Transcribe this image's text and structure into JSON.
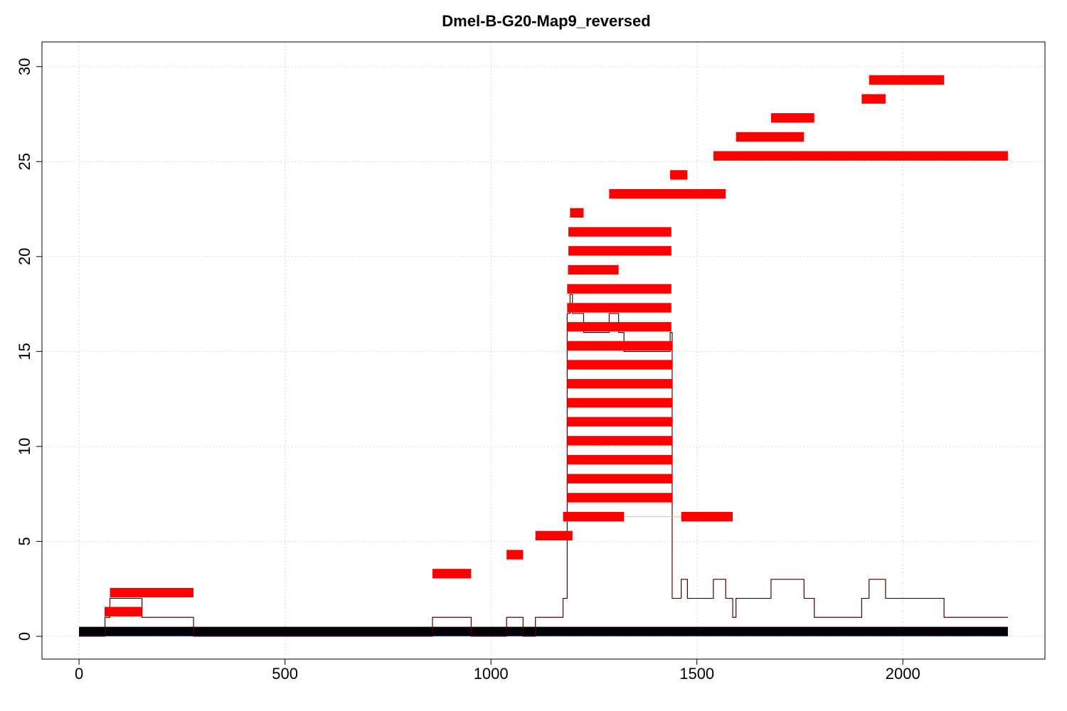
{
  "chart_data": {
    "type": "line",
    "title": "Dmel-B-G20-Map9_reversed",
    "xlabel": "",
    "ylabel": "",
    "xlim": [
      -90,
      2345
    ],
    "ylim": [
      -1.2,
      31.3
    ],
    "xticks": [
      0,
      500,
      1000,
      1500,
      2000
    ],
    "xtick_labels": [
      "0",
      "500",
      "1000",
      "1500",
      "2000"
    ],
    "yticks": [
      0,
      5,
      10,
      15,
      20,
      25,
      30
    ],
    "ytick_labels": [
      "0",
      "5",
      "10",
      "15",
      "20",
      "25",
      "30"
    ],
    "grid": true,
    "colors": {
      "segments": "#ff0000",
      "base_bar": "#000000",
      "coverage_line": "#8b0000",
      "overlay_line": "#000000",
      "gridline": "#d9d9d9"
    },
    "base_bar": {
      "x_start": 0,
      "x_end": 2255,
      "y_low": 0,
      "y_high": 0.5
    },
    "segments": [
      {
        "x_start": 62,
        "x_end": 153,
        "y": 1.3
      },
      {
        "x_start": 75,
        "x_end": 278,
        "y": 2.3
      },
      {
        "x_start": 858,
        "x_end": 952,
        "y": 3.3
      },
      {
        "x_start": 1038,
        "x_end": 1078,
        "y": 4.3
      },
      {
        "x_start": 1108,
        "x_end": 1198,
        "y": 5.3
      },
      {
        "x_start": 1175,
        "x_end": 1323,
        "y": 6.3
      },
      {
        "x_start": 1462,
        "x_end": 1587,
        "y": 6.3
      },
      {
        "x_start": 1185,
        "x_end": 1440,
        "y": 7.3
      },
      {
        "x_start": 1185,
        "x_end": 1440,
        "y": 8.3
      },
      {
        "x_start": 1185,
        "x_end": 1440,
        "y": 9.3
      },
      {
        "x_start": 1185,
        "x_end": 1440,
        "y": 10.3
      },
      {
        "x_start": 1185,
        "x_end": 1440,
        "y": 11.3
      },
      {
        "x_start": 1185,
        "x_end": 1440,
        "y": 12.3
      },
      {
        "x_start": 1185,
        "x_end": 1440,
        "y": 13.3
      },
      {
        "x_start": 1185,
        "x_end": 1440,
        "y": 14.3
      },
      {
        "x_start": 1185,
        "x_end": 1440,
        "y": 15.3
      },
      {
        "x_start": 1185,
        "x_end": 1438,
        "y": 16.3
      },
      {
        "x_start": 1185,
        "x_end": 1438,
        "y": 17.3
      },
      {
        "x_start": 1185,
        "x_end": 1438,
        "y": 18.3
      },
      {
        "x_start": 1187,
        "x_end": 1310,
        "y": 19.3
      },
      {
        "x_start": 1188,
        "x_end": 1438,
        "y": 20.3
      },
      {
        "x_start": 1188,
        "x_end": 1438,
        "y": 21.3
      },
      {
        "x_start": 1192,
        "x_end": 1225,
        "y": 22.3
      },
      {
        "x_start": 1287,
        "x_end": 1570,
        "y": 23.3
      },
      {
        "x_start": 1435,
        "x_end": 1477,
        "y": 24.3
      },
      {
        "x_start": 1540,
        "x_end": 2255,
        "y": 25.3
      },
      {
        "x_start": 1595,
        "x_end": 1760,
        "y": 26.3
      },
      {
        "x_start": 1680,
        "x_end": 1785,
        "y": 27.3
      },
      {
        "x_start": 1900,
        "x_end": 1958,
        "y": 28.3
      },
      {
        "x_start": 1918,
        "x_end": 2100,
        "y": 29.3
      }
    ],
    "coverage_steps": [
      [
        0,
        0
      ],
      [
        63,
        0
      ],
      [
        63,
        1
      ],
      [
        75,
        1
      ],
      [
        75,
        2
      ],
      [
        153,
        2
      ],
      [
        153,
        1
      ],
      [
        278,
        1
      ],
      [
        278,
        0
      ],
      [
        858,
        0
      ],
      [
        858,
        1
      ],
      [
        952,
        1
      ],
      [
        952,
        0
      ],
      [
        1038,
        0
      ],
      [
        1038,
        1
      ],
      [
        1078,
        1
      ],
      [
        1078,
        0
      ],
      [
        1108,
        0
      ],
      [
        1108,
        1
      ],
      [
        1175,
        1
      ],
      [
        1175,
        2
      ],
      [
        1185,
        2
      ],
      [
        1185,
        17
      ],
      [
        1192,
        17
      ],
      [
        1192,
        18
      ],
      [
        1198,
        18
      ],
      [
        1198,
        17
      ],
      [
        1225,
        17
      ],
      [
        1225,
        16
      ],
      [
        1287,
        16
      ],
      [
        1287,
        17
      ],
      [
        1310,
        17
      ],
      [
        1310,
        16
      ],
      [
        1323,
        16
      ],
      [
        1323,
        15
      ],
      [
        1435,
        15
      ],
      [
        1435,
        16
      ],
      [
        1440,
        16
      ],
      [
        1440,
        2
      ],
      [
        1462,
        2
      ],
      [
        1462,
        3
      ],
      [
        1477,
        3
      ],
      [
        1477,
        2
      ],
      [
        1540,
        2
      ],
      [
        1540,
        3
      ],
      [
        1570,
        3
      ],
      [
        1570,
        2
      ],
      [
        1587,
        2
      ],
      [
        1587,
        1
      ],
      [
        1595,
        1
      ],
      [
        1595,
        2
      ],
      [
        1680,
        2
      ],
      [
        1680,
        3
      ],
      [
        1760,
        3
      ],
      [
        1760,
        2
      ],
      [
        1785,
        2
      ],
      [
        1785,
        1
      ],
      [
        1900,
        1
      ],
      [
        1900,
        2
      ],
      [
        1918,
        2
      ],
      [
        1918,
        3
      ],
      [
        1958,
        3
      ],
      [
        1958,
        2
      ],
      [
        2100,
        2
      ],
      [
        2100,
        1
      ],
      [
        2255,
        1
      ]
    ],
    "overlay_steps": [
      [
        1185,
        6.3
      ],
      [
        1462,
        6.3
      ]
    ]
  }
}
